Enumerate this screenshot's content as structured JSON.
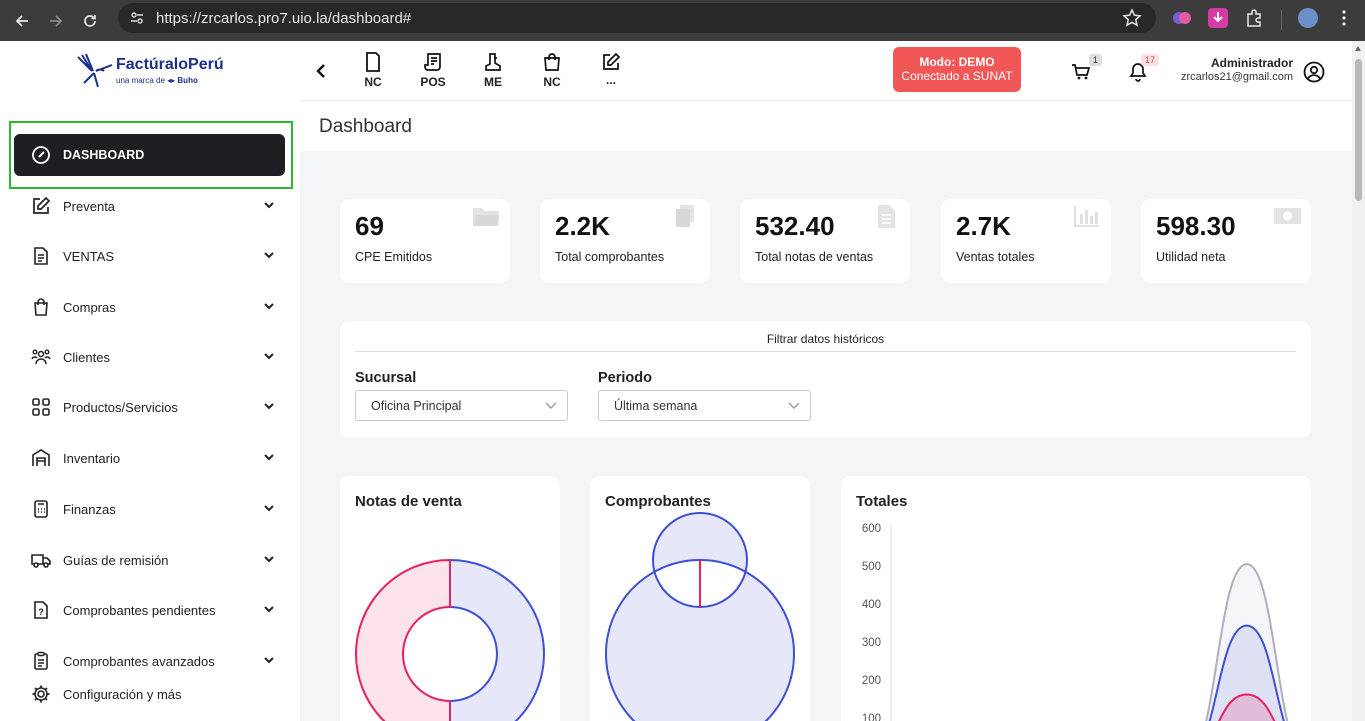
{
  "browser": {
    "url": "https://zrcarlos.pro7.uio.la/dashboard#"
  },
  "brand": {
    "name": "FactúraloPerú",
    "tagline": "una marca de",
    "tagline_brand": "Buho"
  },
  "sidebar": {
    "items": [
      {
        "label": "DASHBOARD",
        "icon": "gauge-icon",
        "active": true
      },
      {
        "label": "Preventa",
        "icon": "edit-icon"
      },
      {
        "label": "VENTAS",
        "icon": "document-icon"
      },
      {
        "label": "Compras",
        "icon": "shopping-bag-icon"
      },
      {
        "label": "Clientes",
        "icon": "users-icon"
      },
      {
        "label": "Productos/Servicios",
        "icon": "grid-icon"
      },
      {
        "label": "Inventario",
        "icon": "warehouse-icon"
      },
      {
        "label": "Finanzas",
        "icon": "calculator-icon"
      },
      {
        "label": "Guías de remisión",
        "icon": "truck-icon"
      },
      {
        "label": "Comprobantes pendientes",
        "icon": "pending-document-icon"
      },
      {
        "label": "Comprobantes avanzados",
        "icon": "clipboard-icon"
      },
      {
        "label": "Configuración y más",
        "icon": "gear-icon"
      }
    ]
  },
  "topbar": {
    "quick_actions": [
      {
        "label": "NC",
        "icon": "note-icon"
      },
      {
        "label": "POS",
        "icon": "receipt-icon"
      },
      {
        "label": "ME",
        "icon": "boot-icon"
      },
      {
        "label": "NC",
        "icon": "bag-icon"
      },
      {
        "label": "...",
        "icon": "pencil-icon"
      }
    ],
    "mode_line1": "Modo: DEMO",
    "mode_line2": "Conectado a SUNAT",
    "cart_count": "1",
    "notifications_count": "17",
    "user_name": "Administrador",
    "user_email": "zrcarlos21@gmail.com"
  },
  "page": {
    "title": "Dashboard"
  },
  "stats": [
    {
      "value": "69",
      "label": "CPE Emitidos",
      "icon": "folder-icon"
    },
    {
      "value": "2.2K",
      "label": "Total comprobantes",
      "icon": "copy-icon"
    },
    {
      "value": "532.40",
      "label": "Total notas de ventas",
      "icon": "file-icon"
    },
    {
      "value": "2.7K",
      "label": "Ventas totales",
      "icon": "bar-chart-icon"
    },
    {
      "value": "598.30",
      "label": "Utilidad neta",
      "icon": "money-icon"
    }
  ],
  "filter": {
    "title": "Filtrar datos históricos",
    "branch_label": "Sucursal",
    "branch_value": "Oficina Principal",
    "period_label": "Periodo",
    "period_value": "Última semana"
  },
  "colors": {
    "accent_dark": "#1f1f23",
    "demo_red": "#f25757",
    "pink": "#e91e63",
    "blue": "#3d4fd8",
    "gray_series": "#aab0c0",
    "highlight": "#2db82d"
  },
  "chart_data": [
    {
      "type": "pie",
      "title": "Notas de venta",
      "values": [
        50,
        50
      ]
    },
    {
      "type": "pie",
      "title": "Comprobantes",
      "values": [
        100
      ]
    },
    {
      "type": "area",
      "title": "Totales",
      "y_ticks": [
        "600",
        "500",
        "400",
        "300",
        "200",
        "100"
      ],
      "ylim": [
        0,
        600
      ],
      "series": [
        {
          "values": [
            0,
            0,
            0,
            0,
            0,
            0,
            505,
            0
          ]
        },
        {
          "values": [
            0,
            0,
            0,
            0,
            0,
            0,
            343,
            0
          ]
        },
        {
          "values": [
            0,
            0,
            0,
            0,
            0,
            0,
            162,
            0
          ]
        }
      ]
    }
  ]
}
